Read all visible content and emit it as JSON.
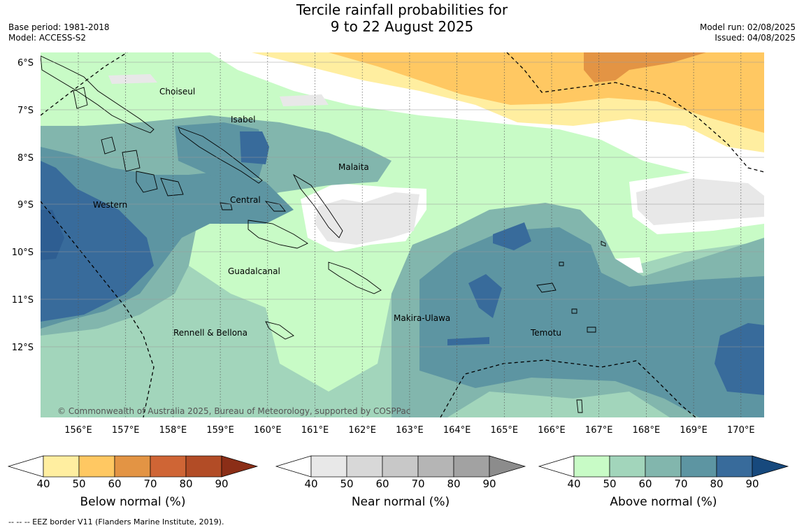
{
  "header": {
    "title_line1": "Tercile rainfall probabilities for",
    "title_line2": "9 to 22 August 2025",
    "base_period": "Base period: 1981-2018",
    "model": "Model: ACCESS-S2",
    "model_run": "Model run: 02/08/2025",
    "issued": "Issued: 04/08/2025"
  },
  "map": {
    "lat_labels": [
      "6°S",
      "7°S",
      "8°S",
      "9°S",
      "10°S",
      "11°S",
      "12°S"
    ],
    "lon_labels": [
      "156°E",
      "157°E",
      "158°E",
      "159°E",
      "160°E",
      "161°E",
      "162°E",
      "163°E",
      "164°E",
      "165°E",
      "166°E",
      "167°E",
      "168°E",
      "169°E",
      "170°E"
    ],
    "regions": {
      "choiseul": "Choiseul",
      "isabel": "Isabel",
      "malaita": "Malaita",
      "western": "Western",
      "central": "Central",
      "guadalcanal": "Guadalcanal",
      "makira": "Makira-Ulawa",
      "temotu": "Temotu",
      "rennell": "Rennell & Bellona"
    },
    "copyright": "© Commonwealth of Australia 2025, Bureau of Meteorology, supported by COSPPac"
  },
  "legends": [
    {
      "title": "Below normal (%)",
      "ticks": [
        "40",
        "50",
        "60",
        "70",
        "80",
        "90"
      ],
      "colors": [
        "#ffeea0",
        "#ffc862",
        "#e39444",
        "#cf6535",
        "#b24c26",
        "#8b2e17"
      ]
    },
    {
      "title": "Near normal (%)",
      "ticks": [
        "40",
        "50",
        "60",
        "70",
        "80",
        "90"
      ],
      "colors": [
        "#e8e8e8",
        "#d8d8d8",
        "#c8c8c8",
        "#b5b5b5",
        "#a2a2a2",
        "#8c8c8c"
      ]
    },
    {
      "title": "Above normal (%)",
      "ticks": [
        "40",
        "50",
        "60",
        "70",
        "80",
        "90"
      ],
      "colors": [
        "#c8fbc6",
        "#a2d5bb",
        "#82b6ad",
        "#5d95a2",
        "#386b9b",
        "#17497d"
      ]
    }
  ],
  "footnote": "--  --  -- EEZ border V11 (Flanders Marine Institute, 2019)."
}
